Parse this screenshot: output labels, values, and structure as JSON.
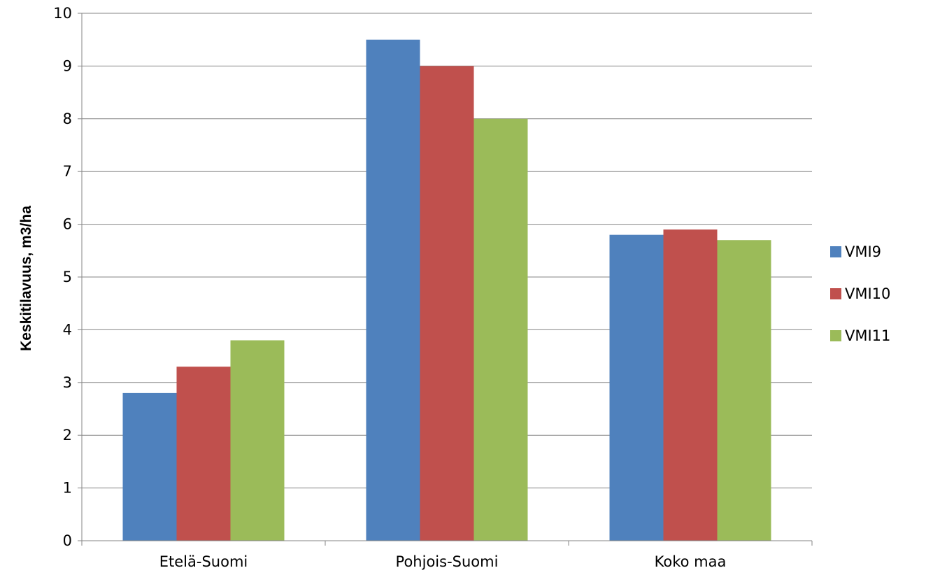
{
  "chart_data": {
    "type": "bar",
    "title": "",
    "xlabel": "",
    "ylabel": "Keskitilavuus, m3/ha",
    "ylim": [
      0,
      10
    ],
    "yticks": [
      0,
      1,
      2,
      3,
      4,
      5,
      6,
      7,
      8,
      9,
      10
    ],
    "grid": true,
    "legend_position": "right",
    "categories": [
      "Etelä-Suomi",
      "Pohjois-Suomi",
      "Koko maa"
    ],
    "series": [
      {
        "name": "VMI9",
        "color": "#4F81BD",
        "values": [
          2.8,
          9.5,
          5.8
        ]
      },
      {
        "name": "VMI10",
        "color": "#C0504D",
        "values": [
          3.3,
          9.0,
          5.9
        ]
      },
      {
        "name": "VMI11",
        "color": "#9BBB59",
        "values": [
          3.8,
          8.0,
          5.7
        ]
      }
    ]
  }
}
